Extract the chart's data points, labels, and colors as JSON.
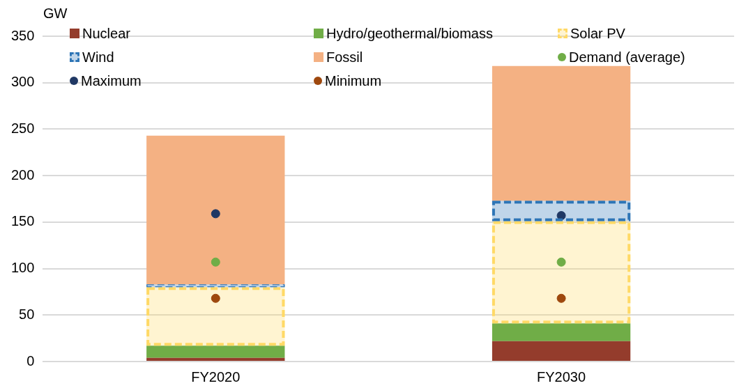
{
  "chart_data": {
    "type": "bar",
    "stacked": true,
    "ylabel": "GW",
    "categories": [
      "FY2020",
      "FY2030"
    ],
    "ylim": [
      0,
      350
    ],
    "yticks": [
      0,
      50,
      100,
      150,
      200,
      250,
      300,
      350
    ],
    "grid": "y",
    "legend": "top",
    "marker": "circle",
    "series": [
      {
        "name": "Nuclear",
        "color": "#943c2c",
        "values": [
          4,
          22
        ]
      },
      {
        "name": "Hydro/geothermal/biomass",
        "color": "#70ad47",
        "values": [
          13,
          19
        ]
      },
      {
        "name": "Solar PV",
        "color": "#ffd966",
        "line_style": "dashed",
        "values": [
          63,
          110
        ]
      },
      {
        "name": "Wind",
        "color": "#2e75b6",
        "line_style": "dashed",
        "values": [
          3,
          22
        ]
      },
      {
        "name": "Fossil",
        "color": "#f4b183",
        "values": [
          160,
          145
        ]
      },
      {
        "name": "Demand (average)",
        "type": "scatter",
        "color": "#70ad47",
        "values": [
          107,
          107
        ]
      },
      {
        "name": "Maximum",
        "type": "scatter",
        "color": "#203864",
        "values": [
          159,
          157
        ]
      },
      {
        "name": "Minimum",
        "type": "scatter",
        "color": "#9e480e",
        "values": [
          68,
          68
        ]
      }
    ]
  }
}
